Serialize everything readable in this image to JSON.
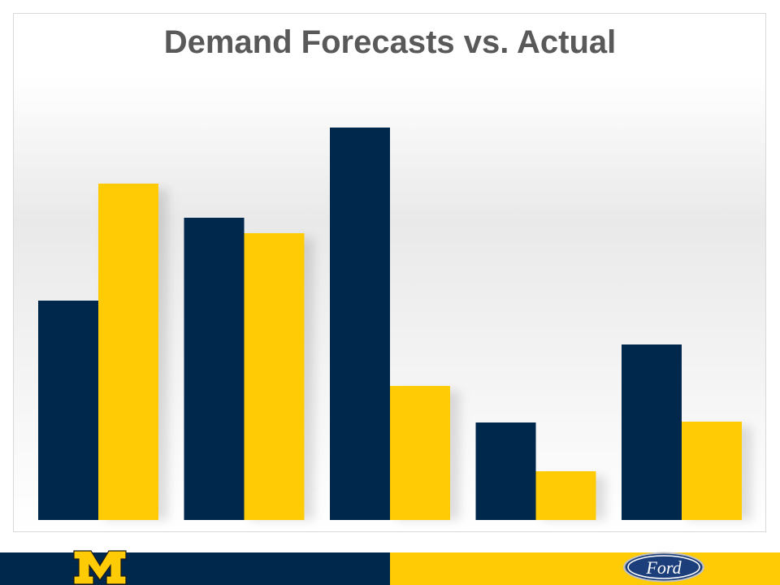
{
  "slide": {
    "title": "Demand Forecasts vs. Actual"
  },
  "colors": {
    "forecast": "#00274c",
    "actual": "#ffcb05",
    "footer_left": "#00274c",
    "footer_right": "#ffcb05"
  },
  "logos": {
    "left": "block-m-logo",
    "right": "ford-oval-logo"
  },
  "chart_data": {
    "type": "bar",
    "title": "Demand Forecasts vs. Actual",
    "categories": [
      "",
      "",
      "",
      "",
      ""
    ],
    "series": [
      {
        "values": [
          270,
          372,
          483,
          120,
          216
        ]
      },
      {
        "values": [
          414,
          353,
          165,
          60,
          121
        ]
      }
    ],
    "ylim": [
      0,
      500
    ],
    "xlabel": "",
    "ylabel": "",
    "grid": false,
    "legend": "none"
  }
}
